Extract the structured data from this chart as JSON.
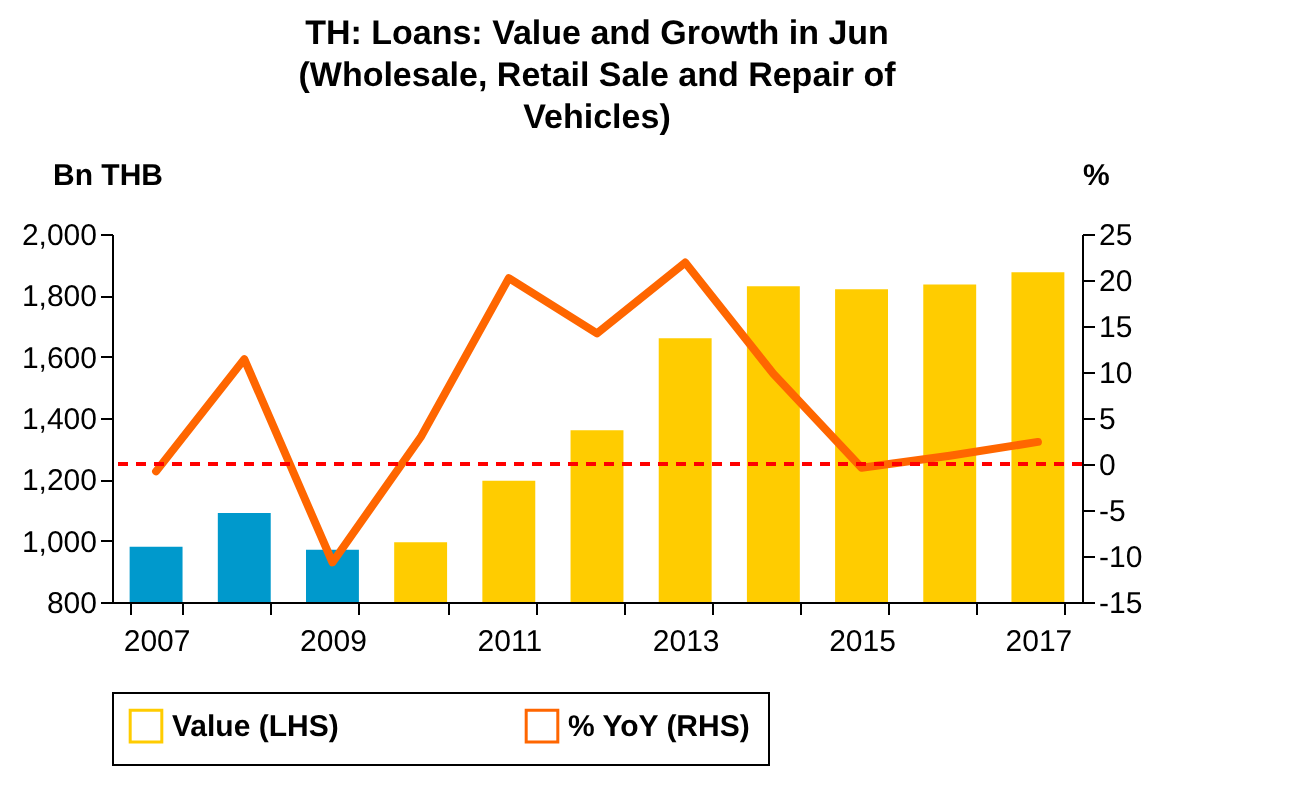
{
  "chart_data": {
    "type": "bar",
    "title": "TH: Loans: Value and Growth in Jun (Wholesale, Retail Sale and Repair of Vehicles)",
    "ylabel": "Bn THB",
    "y2label": "%",
    "categories": [
      "2007",
      null,
      "2009",
      null,
      "2011",
      null,
      "2013",
      null,
      "2015",
      null,
      "2017"
    ],
    "series": [
      {
        "name": "Value (LHS)",
        "type": "bar",
        "color": "#ffcc00",
        "colors": [
          "#0099cc",
          "#0099cc",
          "#0099cc",
          "#ffcc00",
          "#ffcc00",
          "#ffcc00",
          "#ffcc00",
          "#ffcc00",
          "#ffcc00",
          "#ffcc00",
          "#ffcc00"
        ],
        "values": [
          980,
          1090,
          970,
          995,
          1195,
          1360,
          1660,
          1830,
          1820,
          1835,
          1875
        ]
      },
      {
        "name": "% YoY (RHS)",
        "type": "line",
        "axis": "y2",
        "color": "#ff6600",
        "values": [
          -0.8,
          11.4,
          -10.7,
          2.9,
          20.2,
          14.2,
          21.9,
          9.8,
          -0.4,
          0.9,
          2.4
        ]
      }
    ],
    "ylim": [
      800,
      2000
    ],
    "yticks": [
      800,
      {
        "value": 1000,
        "label": "1,000"
      },
      {
        "value": 1200,
        "label": "1,200"
      },
      {
        "value": 1400,
        "label": "1,400"
      },
      {
        "value": 1600,
        "label": "1,600"
      },
      {
        "value": 1800,
        "label": "1,800"
      },
      {
        "value": 2000,
        "label": "2,000"
      }
    ],
    "y2lim": [
      -15,
      25
    ],
    "y2ticks": [
      -15,
      -10,
      -5,
      0,
      5,
      10,
      15,
      20,
      25
    ],
    "ref_lines": [
      {
        "axis": "y2",
        "value": 0,
        "color": "#ff0000",
        "line_style": "dashed"
      }
    ],
    "grid": false,
    "legend": "bottom"
  }
}
